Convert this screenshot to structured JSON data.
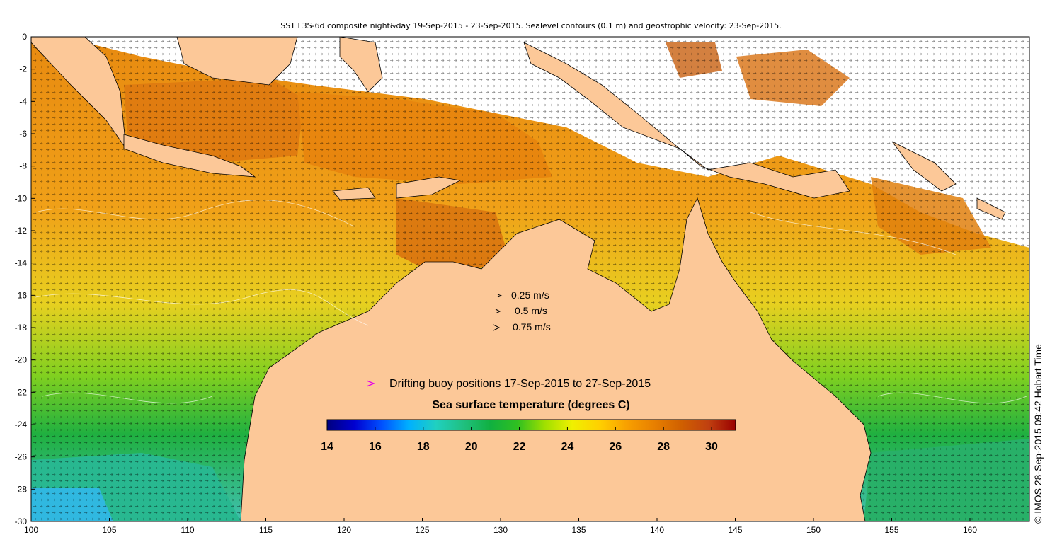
{
  "title": "SST L3S-6d composite night&day 19-Sep-2015 - 23-Sep-2015. Sealevel contours (0.1 m) and geostrophic velocity: 23-Sep-2015.",
  "credit": "© IMOS 28-Sep-2015 09:42 Hobart Time",
  "axes": {
    "x_ticks": [
      "100",
      "105",
      "110",
      "115",
      "120",
      "125",
      "130",
      "135",
      "140",
      "145",
      "150",
      "155",
      "160"
    ],
    "y_ticks": [
      "0",
      "-2",
      "-4",
      "-6",
      "-8",
      "-10",
      "-12",
      "-14",
      "-16",
      "-18",
      "-20",
      "-22",
      "-24",
      "-26",
      "-28",
      "-30"
    ]
  },
  "velocity_legend": {
    "items": [
      {
        "label": "0.25 m/s"
      },
      {
        "label": "0.5 m/s"
      },
      {
        "label": "0.75 m/s"
      }
    ]
  },
  "buoy_legend": {
    "label": "Drifting buoy positions 17-Sep-2015 to 27-Sep-2015",
    "marker_color": "#e600e6"
  },
  "colorbar": {
    "title": "Sea surface temperature (degrees C)",
    "ticks": [
      "14",
      "16",
      "18",
      "20",
      "22",
      "24",
      "26",
      "28",
      "30"
    ],
    "min": 14,
    "max": 31,
    "colors": [
      "#00007f",
      "#0000d0",
      "#0050ff",
      "#00b0ff",
      "#20d0c0",
      "#20c080",
      "#10b040",
      "#30c020",
      "#a0e000",
      "#f0f000",
      "#ffd000",
      "#f8a000",
      "#e88000",
      "#d06000",
      "#c04010",
      "#9a0000"
    ]
  },
  "colors": {
    "land": "#fcc898",
    "ocean_warm": "#e8860a",
    "ocean_mid": "#f8b418",
    "ocean_cool": "#20b040",
    "no_data": "#ffffff"
  }
}
